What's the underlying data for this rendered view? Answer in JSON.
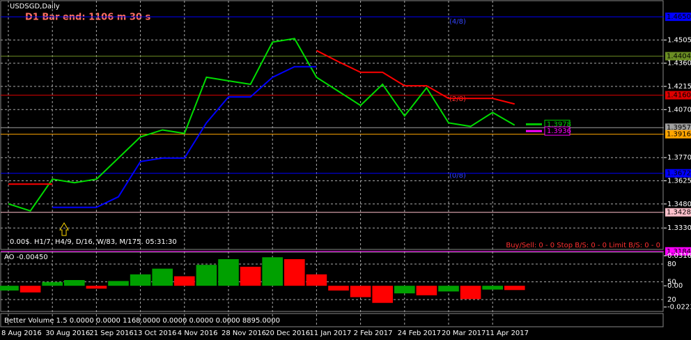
{
  "chart_data": {
    "type": "line",
    "title": "USDSGD,Daily",
    "subtitle": "D1 Bar end: 1106 m 30 s",
    "categories": [
      "8 Aug 2016",
      null,
      "30 Aug 2016",
      null,
      "21 Sep 2016",
      null,
      "13 Oct 2016",
      null,
      "4 Nov 2016",
      null,
      "28 Nov 2016",
      null,
      "20 Dec 2016",
      null,
      "11 Jan 2017",
      null,
      "2 Feb 2017",
      null,
      "24 Feb 2017",
      null,
      "20 Mar 2017",
      null,
      "11 Apr 2017",
      null,
      null
    ],
    "series": [
      {
        "color": "#00dd00",
        "values": [
          1.3481,
          1.3437,
          1.3635,
          1.3613,
          1.3635,
          1.3767,
          1.3899,
          1.3943,
          1.3921,
          1.4272,
          1.425,
          1.4228,
          1.4492,
          1.4514,
          1.4272,
          1.4184,
          1.4096,
          1.4228,
          1.403,
          1.4206,
          1.3987,
          1.3965,
          1.4052,
          1.3973,
          null
        ]
      },
      {
        "color": "#ff0000",
        "values": [
          1.3604,
          1.3604,
          1.3604,
          null,
          null,
          null,
          null,
          null,
          null,
          null,
          null,
          null,
          null,
          null,
          1.4439,
          1.4369,
          1.4303,
          1.4303,
          1.4219,
          1.4219,
          1.414,
          1.414,
          1.414,
          1.4105,
          null
        ]
      },
      {
        "color": "#0000ff",
        "values": [
          null,
          null,
          1.3459,
          1.3459,
          1.3459,
          1.3525,
          1.3745,
          1.3767,
          1.3767,
          1.3987,
          1.4149,
          1.4149,
          1.4272,
          1.4338,
          1.4338,
          null,
          null,
          null,
          null,
          null,
          null,
          null,
          null,
          null,
          null
        ]
      }
    ],
    "ylim": [
      1.3196,
      1.4755
    ],
    "yticks": [
      1.4505,
      {
        "value": 1.436,
        "label": "1.4360"
      },
      1.4215,
      {
        "value": 1.407,
        "label": "1.4070"
      },
      {
        "value": 1.377,
        "label": "1.3770"
      },
      1.3625,
      {
        "value": 1.348,
        "label": "1.3480"
      },
      {
        "value": 1.333,
        "label": "1.3330"
      }
    ],
    "grid": true,
    "levels": [
      {
        "value": 1.465,
        "label": "1.4650",
        "color": "#0000ff"
      },
      {
        "value": 1.4404,
        "label": "1.4404",
        "color": "#6b8e23"
      },
      {
        "value": 1.416,
        "label": "1.4160",
        "color": "#dd0000"
      },
      {
        "value": 1.3957,
        "label": "1.3957",
        "color": "#a0a0a0"
      },
      {
        "value": 1.3916,
        "label": "1.3916",
        "color": "#ffa500"
      },
      {
        "value": 1.3672,
        "label": "1.3672",
        "color": "#0000ff"
      },
      {
        "value": 1.3428,
        "label": "1.3428",
        "color": "#ffc0cb"
      },
      {
        "value": 1.3184,
        "label": "1.3184",
        "color": "#ff00ff"
      }
    ],
    "markers": [
      {
        "value": 1.3978,
        "label": "1.3978",
        "color": "#00cc00"
      },
      {
        "value": 1.3936,
        "label": "1.3936",
        "color": "#ff00ff"
      }
    ],
    "annotations": [
      "(4/8)",
      "(2/8)",
      "(0/8)"
    ],
    "info": "0.00$. H1/7, H4/9, D/16, W/83, M/175. 05:31:30",
    "orders": "Buy/Sell: 0 - 0   Stop B/S: 0 - 0   Limit B/S: 0 - 0",
    "ao": {
      "title": "AO -0.00450",
      "values": [
        -0.005,
        -0.007,
        0.004,
        0.006,
        -0.003,
        0.005,
        0.012,
        0.018,
        0.01,
        0.022,
        0.028,
        0.02,
        0.03,
        0.028,
        0.012,
        -0.005,
        -0.012,
        -0.018,
        -0.008,
        -0.01,
        -0.006,
        -0.014,
        -0.004,
        -0.0045,
        null
      ],
      "ylim": [
        -0.027,
        0.0353
      ],
      "yticks": [
        0.03161,
        {
          "value": 0,
          "label": "0.00"
        },
        -0.02238
      ],
      "stoch_ylim": [
        0,
        100
      ],
      "stoch_levels": [
        80,
        50,
        20
      ]
    },
    "volume": {
      "title": "Better Volume 1.5 0.0000 0.0000 1168.0000 0.0000 0.0000 0.0000 8895.0000"
    }
  }
}
